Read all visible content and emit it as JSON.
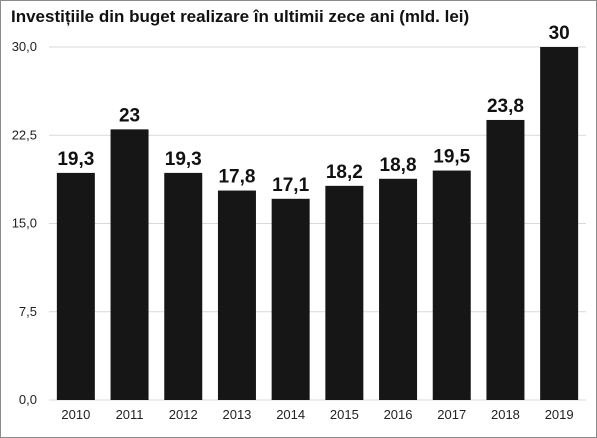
{
  "chart_data": {
    "type": "bar",
    "title": "Investițiile din buget realizare în ultimii zece ani (mld. lei)",
    "categories": [
      "2010",
      "2011",
      "2012",
      "2013",
      "2014",
      "2015",
      "2016",
      "2017",
      "2018",
      "2019"
    ],
    "values": [
      19.3,
      23,
      19.3,
      17.8,
      17.1,
      18.2,
      18.8,
      19.5,
      23.8,
      30
    ],
    "value_labels": [
      "19,3",
      "23",
      "19,3",
      "17,8",
      "17,1",
      "18,2",
      "18,8",
      "19,5",
      "23,8",
      "30"
    ],
    "yticks": [
      0,
      7.5,
      15,
      22.5,
      30
    ],
    "ytick_labels": [
      "0,0",
      "7,5",
      "15,0",
      "22,5",
      "30,0"
    ],
    "ylim": [
      0,
      30
    ],
    "grid": true,
    "legend": "none",
    "bar_color": "#161616",
    "grid_color": "#d9d9d9"
  }
}
